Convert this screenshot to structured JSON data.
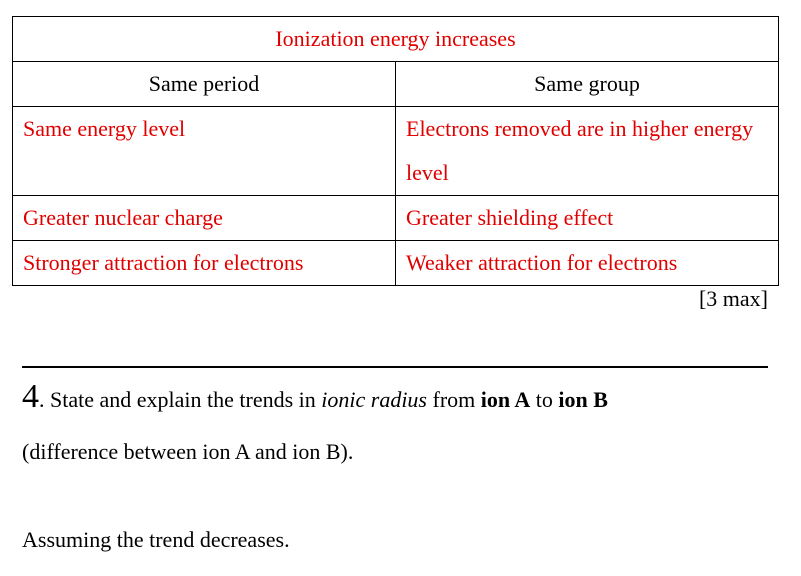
{
  "table": {
    "title": "Ionization energy increases",
    "headers": [
      "Same period",
      "Same group"
    ],
    "rows": [
      [
        "Same energy level",
        "Electrons removed are in higher energy level"
      ],
      [
        "Greater nuclear charge",
        "Greater shielding effect"
      ],
      [
        "Stronger attraction for electrons",
        "Weaker attraction for electrons"
      ]
    ],
    "text_color": "#e00000"
  },
  "marks": "[3 max]",
  "question": {
    "number": "4",
    "number_suffix": ".",
    "intro": " State and explain the trends in ",
    "italic_term": "ionic radius",
    "from_text": " from ",
    "ion_a": "ion A",
    "to_text": " to ",
    "ion_b": "ion B",
    "line2": "(difference between ion A and ion B).",
    "line3": "Assuming the trend decreases."
  }
}
